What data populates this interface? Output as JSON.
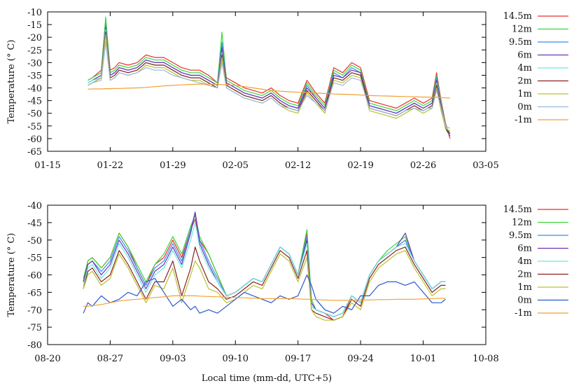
{
  "chart_data": [
    {
      "type": "line",
      "panel": "top",
      "title": "",
      "xlabel": "",
      "ylabel": "Temperature (° C)",
      "ylim": [
        -65,
        -10
      ],
      "yticks": [
        -10,
        -15,
        -20,
        -25,
        -30,
        -35,
        -40,
        -45,
        -50,
        -55,
        -60,
        -65
      ],
      "xticks": [
        "01-15",
        "01-22",
        "01-29",
        "02-05",
        "02-12",
        "02-19",
        "02-26",
        "03-05"
      ],
      "x_range_days": [
        0,
        49
      ],
      "legend_position": "right",
      "x_day": [
        4.5,
        5,
        6,
        6.5,
        7,
        7.5,
        8,
        9,
        10,
        11,
        12,
        13,
        14,
        15,
        16,
        17,
        18,
        19,
        19.5,
        20,
        21,
        22,
        23,
        24,
        25,
        26,
        27,
        28,
        29,
        30,
        31,
        32,
        33,
        34,
        35,
        36,
        37,
        38,
        39,
        40,
        41,
        42,
        42.5,
        43,
        43.5,
        44,
        44.5,
        45
      ],
      "series": [
        {
          "name": "14.5m",
          "color": "#e8302a",
          "values": [
            -37,
            -36,
            -33,
            -13,
            -33,
            -32,
            -30,
            -31,
            -30,
            -27,
            -28,
            -28,
            -30,
            -32,
            -33,
            -33,
            -35,
            -38,
            -24,
            -36,
            -38,
            -40,
            -41,
            -42,
            -40,
            -43,
            -45,
            -46,
            -37,
            -42,
            -46,
            -32,
            -34,
            -30,
            -32,
            -45,
            -46,
            -47,
            -48,
            -46,
            -44,
            -46,
            -45,
            -44,
            -34,
            -45,
            -54,
            -60
          ]
        },
        {
          "name": "12m",
          "color": "#3dd63a",
          "values": [
            -37,
            -36,
            -34,
            -12,
            -34,
            -33,
            -31,
            -32,
            -31,
            -28,
            -29,
            -29,
            -31,
            -33,
            -34,
            -34,
            -36,
            -38,
            -18,
            -37,
            -39,
            -41,
            -42,
            -43,
            -41,
            -44,
            -46,
            -47,
            -38,
            -43,
            -47,
            -33,
            -35,
            -31,
            -33,
            -46,
            -47,
            -48,
            -49,
            -47,
            -45,
            -47,
            -46,
            -45,
            -35,
            -46,
            -55,
            -58
          ]
        },
        {
          "name": "9.5m",
          "color": "#3a8fe8",
          "values": [
            -38,
            -37,
            -35,
            -15,
            -35,
            -34,
            -32,
            -33,
            -32,
            -29,
            -30,
            -30,
            -32,
            -34,
            -35,
            -35,
            -37,
            -39,
            -22,
            -38,
            -40,
            -42,
            -43,
            -44,
            -42,
            -45,
            -47,
            -48,
            -39,
            -44,
            -48,
            -34,
            -36,
            -32,
            -34,
            -47,
            -48,
            -49,
            -50,
            -48,
            -46,
            -48,
            -47,
            -46,
            -36,
            -47,
            -56,
            -59
          ]
        },
        {
          "name": "6m",
          "color": "#6a34b8",
          "values": [
            -38,
            -37,
            -35,
            -16,
            -35,
            -34,
            -32,
            -33,
            -32,
            -29,
            -30,
            -30,
            -32,
            -34,
            -35,
            -35,
            -37,
            -39,
            -24,
            -38,
            -40,
            -42,
            -43,
            -44,
            -42,
            -45,
            -47,
            -48,
            -40,
            -44,
            -48,
            -35,
            -36,
            -33,
            -34,
            -47,
            -48,
            -49,
            -50,
            -48,
            -46,
            -48,
            -47,
            -46,
            -37,
            -47,
            -56,
            -59
          ]
        },
        {
          "name": "4m",
          "color": "#6ee8e0",
          "values": [
            -38,
            -37,
            -36,
            -17,
            -36,
            -35,
            -33,
            -34,
            -33,
            -30,
            -31,
            -31,
            -33,
            -35,
            -36,
            -36,
            -38,
            -40,
            -26,
            -39,
            -41,
            -43,
            -44,
            -45,
            -43,
            -46,
            -48,
            -49,
            -41,
            -45,
            -49,
            -36,
            -37,
            -34,
            -35,
            -48,
            -49,
            -50,
            -51,
            -49,
            -47,
            -49,
            -48,
            -47,
            -38,
            -48,
            -56,
            -58
          ]
        },
        {
          "name": "2m",
          "color": "#8a2020",
          "values": [
            -39,
            -38,
            -36,
            -18,
            -36,
            -35,
            -33,
            -34,
            -33,
            -30,
            -31,
            -31,
            -33,
            -35,
            -36,
            -36,
            -38,
            -40,
            -27,
            -39,
            -41,
            -43,
            -44,
            -45,
            -43,
            -46,
            -48,
            -49,
            -41,
            -45,
            -49,
            -36,
            -37,
            -34,
            -35,
            -48,
            -49,
            -50,
            -51,
            -49,
            -47,
            -49,
            -48,
            -47,
            -39,
            -48,
            -56,
            -58
          ]
        },
        {
          "name": "1m",
          "color": "#b8c230",
          "values": [
            -39,
            -38,
            -36,
            -19,
            -37,
            -36,
            -34,
            -35,
            -34,
            -31,
            -32,
            -32,
            -34,
            -36,
            -37,
            -37,
            -39,
            -40,
            -28,
            -40,
            -42,
            -44,
            -45,
            -46,
            -44,
            -47,
            -49,
            -50,
            -42,
            -46,
            -50,
            -37,
            -38,
            -35,
            -36,
            -49,
            -50,
            -51,
            -52,
            -50,
            -48,
            -50,
            -49,
            -48,
            -40,
            -49,
            -56,
            -57
          ]
        },
        {
          "name": "0m",
          "color": "#9ab8e0",
          "values": [
            -39,
            -38,
            -37,
            -22,
            -37,
            -36,
            -34,
            -35,
            -34,
            -32,
            -33,
            -33,
            -35,
            -36,
            -37,
            -38,
            -39,
            -40,
            -30,
            -40,
            -42,
            -44,
            -45,
            -46,
            -44,
            -47,
            -48,
            -49,
            -43,
            -46,
            -49,
            -38,
            -39,
            -36,
            -37,
            -48,
            -49,
            -50,
            -51,
            -49,
            -48,
            -49,
            -48,
            -48,
            -41,
            -48,
            -55,
            -56
          ]
        },
        {
          "name": "-1m",
          "color": "#f0a030",
          "values": [
            -40.5,
            -40.4,
            -40.4,
            -40.3,
            -40.3,
            -40.2,
            -40.2,
            -40.1,
            -40,
            -39.8,
            -39.5,
            -39.2,
            -39,
            -38.8,
            -38.6,
            -38.5,
            -38.5,
            -38.6,
            -38.7,
            -38.8,
            -39,
            -39.5,
            -40,
            -40.5,
            -41,
            -41.3,
            -41.5,
            -41.7,
            -41.8,
            -42,
            -42.2,
            -42.4,
            -42.5,
            -42.6,
            -42.8,
            -43,
            -43.1,
            -43.2,
            -43.3,
            -43.4,
            -43.5,
            -43.6,
            -43.6,
            -43.7,
            -43.7,
            -43.8,
            -43.9,
            -44
          ]
        }
      ]
    },
    {
      "type": "line",
      "panel": "bottom",
      "title": "",
      "xlabel": "Local time (mm-dd, UTC+5)",
      "ylabel": "Temperature (° C)",
      "ylim": [
        -80,
        -40
      ],
      "yticks": [
        -40,
        -45,
        -50,
        -55,
        -60,
        -65,
        -70,
        -75,
        -80
      ],
      "xticks": [
        "08-20",
        "08-27",
        "09-03",
        "09-10",
        "09-17",
        "09-24",
        "10-01",
        "10-08"
      ],
      "x_range_days": [
        0,
        49
      ],
      "legend_position": "right",
      "x_day": [
        4,
        4.5,
        5,
        6,
        7,
        8,
        9,
        10,
        11,
        12,
        13,
        14,
        15,
        16,
        16.5,
        17,
        18,
        19,
        20,
        21,
        22,
        23,
        24,
        25,
        26,
        27,
        28,
        29,
        29.5,
        30,
        31,
        32,
        33,
        34,
        35,
        36,
        37,
        38,
        39,
        40,
        41,
        42,
        43,
        44,
        44.5
      ],
      "series": [
        {
          "name": "14.5m",
          "color": "#e8302a",
          "values": [
            -62,
            -56,
            -55,
            -58,
            -55,
            -48,
            -52,
            -58,
            -63,
            -57,
            -55,
            -50,
            -55,
            -47,
            -44,
            -50,
            -54,
            -60,
            -66,
            -65,
            -63,
            -61,
            -62,
            -57,
            -52,
            -54,
            -60,
            -48,
            -68,
            -70,
            -71,
            -73,
            -72,
            -66,
            -68,
            -60,
            -56,
            -54,
            -52,
            -50,
            -56,
            -60,
            -64,
            -62,
            -62
          ]
        },
        {
          "name": "12m",
          "color": "#3dd63a",
          "values": [
            -61,
            -56,
            -55,
            -58,
            -55,
            -48,
            -52,
            -57,
            -62,
            -57,
            -54,
            -49,
            -54,
            -46,
            -43,
            -49,
            -54,
            -60,
            -66,
            -65,
            -63,
            -61,
            -62,
            -57,
            -52,
            -54,
            -60,
            -47,
            -67,
            -70,
            -71,
            -72,
            -71,
            -66,
            -68,
            -60,
            -56,
            -53,
            -51,
            -49,
            -56,
            -60,
            -64,
            -62,
            -62
          ]
        },
        {
          "name": "9.5m",
          "color": "#3a8fe8",
          "values": [
            -62,
            -57,
            -56,
            -59,
            -56,
            -49,
            -53,
            -58,
            -63,
            -58,
            -56,
            -51,
            -56,
            -47,
            -42,
            -50,
            -56,
            -61,
            -66,
            -65,
            -63,
            -61,
            -62,
            -57,
            -52,
            -54,
            -60,
            -49,
            -68,
            -70,
            -71,
            -72,
            -71,
            -66,
            -68,
            -60,
            -56,
            -54,
            -52,
            -50,
            -56,
            -60,
            -64,
            -62,
            -62
          ]
        },
        {
          "name": "6m",
          "color": "#6a34b8",
          "values": [
            -62,
            -57,
            -56,
            -60,
            -57,
            -50,
            -54,
            -59,
            -64,
            -59,
            -57,
            -52,
            -57,
            -48,
            -42,
            -51,
            -57,
            -62,
            -66,
            -65,
            -63,
            -61,
            -62,
            -57,
            -52,
            -54,
            -60,
            -50,
            -68,
            -70,
            -71,
            -72,
            -71,
            -66,
            -68,
            -60,
            -56,
            -54,
            -52,
            -48,
            -56,
            -60,
            -64,
            -62,
            -62
          ]
        },
        {
          "name": "4m",
          "color": "#6ee8e0",
          "values": [
            -63,
            -58,
            -57,
            -61,
            -58,
            -51,
            -55,
            -60,
            -65,
            -60,
            -58,
            -53,
            -58,
            -50,
            -45,
            -52,
            -58,
            -62,
            -66,
            -65,
            -63,
            -61,
            -62,
            -57,
            -52,
            -54,
            -60,
            -51,
            -69,
            -70,
            -71,
            -72,
            -71,
            -66,
            -68,
            -60,
            -56,
            -54,
            -52,
            -51,
            -56,
            -60,
            -64,
            -62,
            -62
          ]
        },
        {
          "name": "2m",
          "color": "#8a2020",
          "values": [
            -64,
            -59,
            -58,
            -62,
            -60,
            -53,
            -57,
            -62,
            -67,
            -62,
            -62,
            -56,
            -66,
            -58,
            -52,
            -56,
            -62,
            -64,
            -67,
            -66,
            -64,
            -62,
            -63,
            -58,
            -53,
            -55,
            -61,
            -53,
            -70,
            -71,
            -72,
            -73,
            -72,
            -67,
            -69,
            -61,
            -57,
            -55,
            -53,
            -52,
            -57,
            -61,
            -65,
            -63,
            -63
          ]
        },
        {
          "name": "1m",
          "color": "#b8c230",
          "values": [
            -64,
            -60,
            -59,
            -63,
            -61,
            -54,
            -58,
            -63,
            -68,
            -63,
            -64,
            -58,
            -68,
            -60,
            -56,
            -58,
            -64,
            -65,
            -68,
            -67,
            -65,
            -63,
            -64,
            -59,
            -54,
            -56,
            -62,
            -55,
            -70,
            -72,
            -73,
            -73,
            -72,
            -68,
            -70,
            -62,
            -58,
            -56,
            -54,
            -53,
            -58,
            -62,
            -66,
            -64,
            -64
          ]
        },
        {
          "name": "0m",
          "color": "#2a58d0",
          "values": [
            -71,
            -68,
            -69,
            -66,
            -68,
            -67,
            -65,
            -66,
            -62,
            -61,
            -65,
            -69,
            -67,
            -70,
            -69,
            -71,
            -70,
            -71,
            -69,
            -67,
            -65,
            -66,
            -67,
            -68,
            -66,
            -67,
            -66,
            -60,
            -63,
            -67,
            -70,
            -71,
            -69,
            -70,
            -66,
            -66,
            -63,
            -62,
            -62,
            -63,
            -62,
            -65,
            -68,
            -68,
            -67
          ]
        },
        {
          "name": "-1m",
          "color": "#f0a030",
          "values": [
            -69,
            -69,
            -68.8,
            -68.5,
            -68,
            -67.5,
            -67.2,
            -67,
            -66.8,
            -66.5,
            -66.3,
            -66,
            -66,
            -66,
            -66,
            -66.1,
            -66.2,
            -66.3,
            -66.4,
            -66.5,
            -66.6,
            -66.7,
            -66.8,
            -66.8,
            -66.8,
            -66.8,
            -66.9,
            -67,
            -67,
            -67.1,
            -67.2,
            -67.3,
            -67.3,
            -67.3,
            -67.2,
            -67.2,
            -67.1,
            -67.1,
            -67,
            -67,
            -67,
            -66.9,
            -66.8,
            -66.7,
            -66.7
          ]
        }
      ]
    }
  ]
}
